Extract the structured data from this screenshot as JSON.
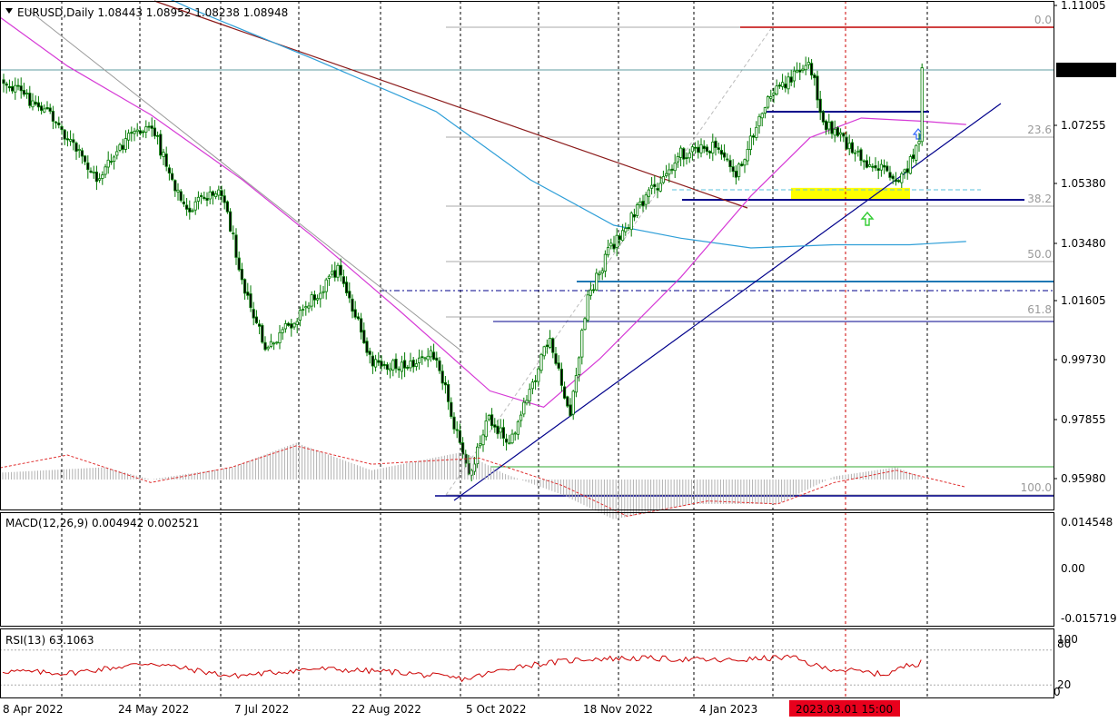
{
  "header": {
    "symbol_line": "EURUSD,Daily  1.08443 1.08952 1.08238 1.08948",
    "macd_line": "MACD(12,26,9) 0.004942 0.002521",
    "rsi_line": "RSI(13) 63.1063"
  },
  "price_axis": {
    "ticks": [
      "1.11005",
      "1.07255",
      "1.05380",
      "1.03480",
      "1.01605",
      "0.99730",
      "0.97855",
      "0.95980"
    ],
    "current_price": "1.08948"
  },
  "macd_axis": {
    "ticks": [
      "0.014548",
      "0.00",
      "-0.015719"
    ]
  },
  "rsi_axis": {
    "ticks": [
      "100",
      "80",
      "20",
      "0"
    ]
  },
  "time_axis": {
    "labels": [
      "8 Apr 2022",
      "24 May 2022",
      "7 Jul 2022",
      "22 Aug 2022",
      "5 Oct 2022",
      "18 Nov 2022",
      "4 Jan 2023"
    ],
    "crosshair_label": "2023.03.01 15:00"
  },
  "fibo_levels": [
    "0.0",
    "23.6",
    "38.2",
    "50.0",
    "61.8",
    "100.0"
  ],
  "colors": {
    "candle": "#007a00",
    "sma_fast": "#d63ad6",
    "sma_slow": "#2f9fd8",
    "trend": "#00008b",
    "macd_hist": "#b0b0b0",
    "macd_signal": "#e03030",
    "rsi": "#cc0000",
    "highlight": "#ffff00",
    "red_level": "#c00000"
  },
  "chart_data": {
    "type": "candlestick",
    "symbol": "EURUSD",
    "timeframe": "Daily",
    "last_bar": {
      "open": 1.08443,
      "high": 1.08952,
      "low": 1.08238,
      "close": 1.08948
    },
    "ylim": [
      0.9535,
      1.11005
    ],
    "close_path": {
      "dates": [
        "2022-04-01",
        "2022-04-08",
        "2022-04-25",
        "2022-05-12",
        "2022-05-24",
        "2022-06-01",
        "2022-06-14",
        "2022-06-27",
        "2022-07-07",
        "2022-07-14",
        "2022-08-10",
        "2022-08-22",
        "2022-09-06",
        "2022-09-15",
        "2022-09-27",
        "2022-10-04",
        "2022-10-13",
        "2022-10-27",
        "2022-11-04",
        "2022-11-10",
        "2022-11-18",
        "2022-12-01",
        "2022-12-15",
        "2022-12-29",
        "2023-01-04",
        "2023-01-18",
        "2023-02-01",
        "2023-02-06",
        "2023-02-22",
        "2023-03-01",
        "2023-03-07",
        "2023-03-15",
        "2023-03-21",
        "2023-03-31"
      ],
      "close": [
        1.088,
        1.085,
        1.075,
        1.055,
        1.068,
        1.072,
        1.045,
        1.053,
        1.018,
        1.002,
        1.028,
        0.998,
        0.998,
        1.002,
        0.963,
        0.982,
        0.974,
        1.006,
        0.982,
        1.018,
        1.033,
        1.048,
        1.063,
        1.065,
        1.056,
        1.082,
        1.091,
        1.073,
        1.06,
        1.058,
        1.055,
        1.068,
        1.082,
        1.0895
      ]
    },
    "sma_fast": {
      "dates": [
        "2022-04-01",
        "2022-05-01",
        "2022-06-01",
        "2022-07-05",
        "2022-08-01",
        "2022-09-01",
        "2022-10-05",
        "2022-10-25",
        "2022-11-15",
        "2022-12-15",
        "2023-01-10",
        "2023-02-01",
        "2023-02-20",
        "2023-03-15",
        "2023-03-31"
      ],
      "values": [
        1.108,
        1.09,
        1.075,
        1.055,
        1.037,
        1.015,
        0.99,
        0.985,
        1.0,
        1.025,
        1.05,
        1.068,
        1.074,
        1.073,
        1.072
      ]
    },
    "sma_slow": {
      "dates": [
        "2022-05-01",
        "2022-06-15",
        "2022-08-01",
        "2022-09-15",
        "2022-10-20",
        "2022-11-20",
        "2022-12-15",
        "2023-01-10",
        "2023-02-10",
        "2023-03-10",
        "2023-03-31"
      ],
      "values": [
        1.125,
        1.108,
        1.092,
        1.076,
        1.055,
        1.041,
        1.037,
        1.034,
        1.035,
        1.035,
        1.036
      ]
    },
    "levels": [
      1.1025,
      1.0755,
      1.0489,
      1.0225,
      1.0184,
      1.0112,
      0.9625,
      0.9545
    ],
    "fibonacci": {
      "from_price": 0.9536,
      "to_price": 1.1028,
      "levels": [
        "0.0",
        "23.6",
        "38.2",
        "50.0",
        "61.8",
        "100.0"
      ]
    },
    "macd": {
      "main": {
        "dates": [
          "2022-04-01",
          "2022-05-15",
          "2022-06-01",
          "2022-07-01",
          "2022-07-25",
          "2022-08-22",
          "2022-09-25",
          "2022-10-10",
          "2022-11-01",
          "2022-11-20",
          "2022-12-20",
          "2023-01-20",
          "2023-02-10",
          "2023-03-05",
          "2023-03-31"
        ],
        "values": [
          -0.002,
          -0.004,
          0.0,
          -0.004,
          -0.012,
          -0.003,
          -0.009,
          -0.002,
          0.005,
          0.013,
          0.008,
          0.008,
          -0.001,
          -0.004,
          0.005
        ]
      },
      "signal": {
        "dates": [
          "2022-04-01",
          "2022-05-01",
          "2022-06-01",
          "2022-07-01",
          "2022-07-25",
          "2022-08-22",
          "2022-10-01",
          "2022-11-01",
          "2022-11-25",
          "2022-12-25",
          "2023-01-20",
          "2023-02-10",
          "2023-03-05",
          "2023-03-31"
        ],
        "values": [
          -0.003,
          -0.008,
          0.001,
          -0.004,
          -0.011,
          -0.005,
          -0.007,
          0.002,
          0.012,
          0.007,
          0.008,
          0.001,
          -0.003,
          0.0025
        ]
      },
      "ylim": [
        -0.015719,
        0.014548
      ]
    },
    "rsi": {
      "dates": [
        "2022-04-01",
        "2022-05-01",
        "2022-06-01",
        "2022-07-01",
        "2022-08-01",
        "2022-09-01",
        "2022-09-26",
        "2022-10-15",
        "2022-11-10",
        "2022-12-01",
        "2023-01-01",
        "2023-01-25",
        "2023-02-05",
        "2023-03-01",
        "2023-03-10",
        "2023-03-31"
      ],
      "values": [
        45,
        40,
        58,
        35,
        48,
        42,
        30,
        52,
        65,
        66,
        62,
        68,
        50,
        38,
        55,
        63.1
      ],
      "ylim": [
        0,
        100
      ]
    }
  }
}
